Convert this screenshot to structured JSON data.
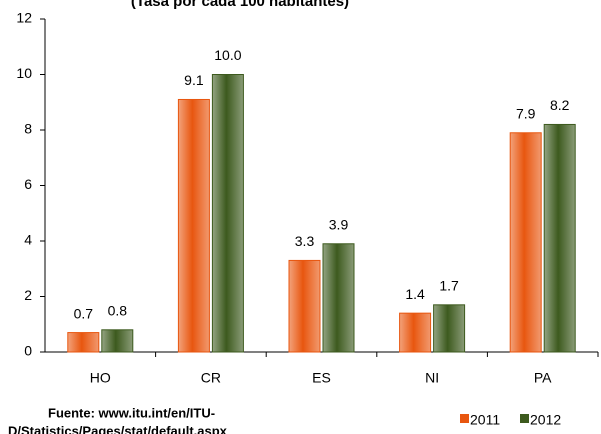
{
  "chart_data": {
    "type": "bar",
    "title": "(Tasa por cada 100 habitantes)",
    "categories": [
      "HO",
      "CR",
      "ES",
      "NI",
      "PA"
    ],
    "series": [
      {
        "name": "2011",
        "color": "#e8560f",
        "values": [
          0.7,
          9.1,
          3.3,
          1.4,
          7.9
        ],
        "value_labels": [
          "0.7",
          "9.1",
          "3.3",
          "1.4",
          "7.9"
        ]
      },
      {
        "name": "2012",
        "color": "#3d5a1e",
        "values": [
          0.8,
          10,
          3.9,
          1.7,
          8.2
        ],
        "value_labels": [
          "0.8",
          "10.0",
          "3.9",
          "1.7",
          "8.2"
        ]
      }
    ],
    "ylim": [
      0,
      12
    ],
    "yticks": [
      0,
      2,
      4,
      6,
      8,
      10,
      12
    ],
    "grid": false,
    "legend": "bottom-right",
    "source": [
      "Fuente:  www.itu.int/en/ITU-",
      "D/Statistics/Pages/stat/default.aspx"
    ]
  }
}
